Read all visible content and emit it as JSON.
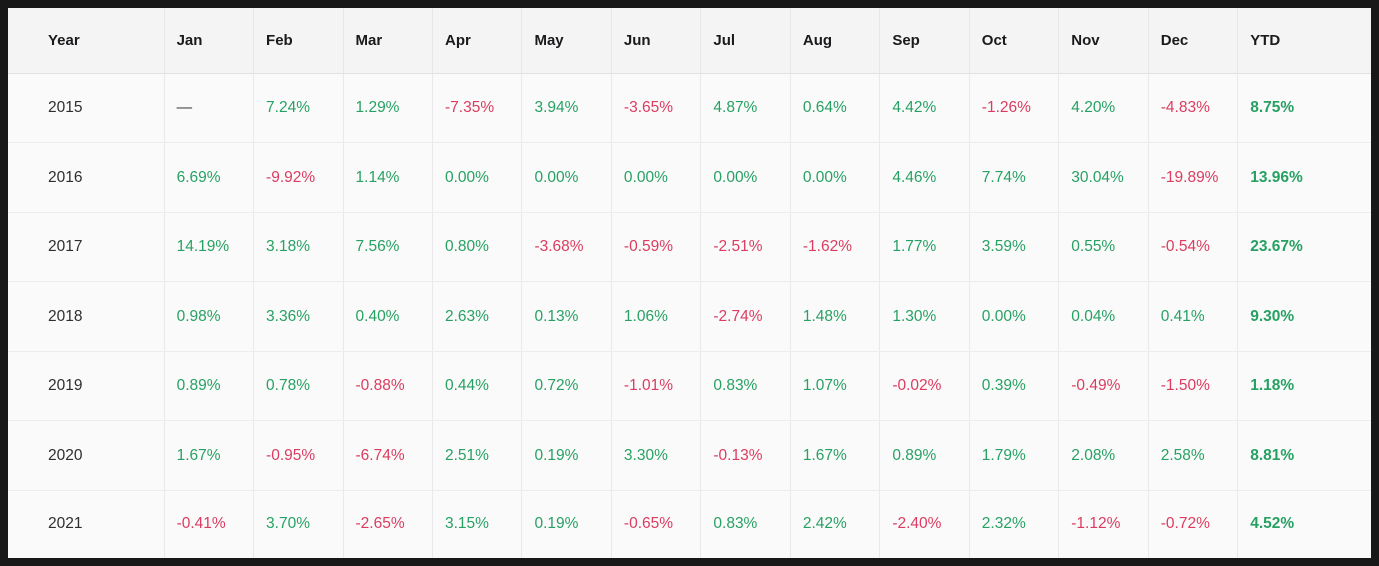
{
  "table": {
    "columns": [
      "Year",
      "Jan",
      "Feb",
      "Mar",
      "Apr",
      "May",
      "Jun",
      "Jul",
      "Aug",
      "Sep",
      "Oct",
      "Nov",
      "Dec",
      "YTD"
    ],
    "empty_placeholder": "—",
    "rows": [
      {
        "year": "2015",
        "monthly": [
          "—",
          "7.24%",
          "1.29%",
          "-7.35%",
          "3.94%",
          "-3.65%",
          "4.87%",
          "0.64%",
          "4.42%",
          "-1.26%",
          "4.20%",
          "-4.83%"
        ],
        "ytd": "8.75%"
      },
      {
        "year": "2016",
        "monthly": [
          "6.69%",
          "-9.92%",
          "1.14%",
          "0.00%",
          "0.00%",
          "0.00%",
          "0.00%",
          "0.00%",
          "4.46%",
          "7.74%",
          "30.04%",
          "-19.89%"
        ],
        "ytd": "13.96%"
      },
      {
        "year": "2017",
        "monthly": [
          "14.19%",
          "3.18%",
          "7.56%",
          "0.80%",
          "-3.68%",
          "-0.59%",
          "-2.51%",
          "-1.62%",
          "1.77%",
          "3.59%",
          "0.55%",
          "-0.54%"
        ],
        "ytd": "23.67%"
      },
      {
        "year": "2018",
        "monthly": [
          "0.98%",
          "3.36%",
          "0.40%",
          "2.63%",
          "0.13%",
          "1.06%",
          "-2.74%",
          "1.48%",
          "1.30%",
          "0.00%",
          "0.04%",
          "0.41%"
        ],
        "ytd": "9.30%"
      },
      {
        "year": "2019",
        "monthly": [
          "0.89%",
          "0.78%",
          "-0.88%",
          "0.44%",
          "0.72%",
          "-1.01%",
          "0.83%",
          "1.07%",
          "-0.02%",
          "0.39%",
          "-0.49%",
          "-1.50%"
        ],
        "ytd": "1.18%"
      },
      {
        "year": "2020",
        "monthly": [
          "1.67%",
          "-0.95%",
          "-6.74%",
          "2.51%",
          "0.19%",
          "3.30%",
          "-0.13%",
          "1.67%",
          "0.89%",
          "1.79%",
          "2.08%",
          "2.58%"
        ],
        "ytd": "8.81%"
      },
      {
        "year": "2021",
        "monthly": [
          "-0.41%",
          "3.70%",
          "-2.65%",
          "3.15%",
          "0.19%",
          "-0.65%",
          "0.83%",
          "2.42%",
          "-2.40%",
          "2.32%",
          "-1.12%",
          "-0.72%"
        ],
        "ytd": "4.52%"
      }
    ]
  },
  "colors": {
    "positive": "#27a163",
    "negative": "#db3c5f",
    "dash": "#3c3c3e",
    "frame": "#181818",
    "header_background": "#f4f4f5",
    "body_background": "#fafafa"
  }
}
